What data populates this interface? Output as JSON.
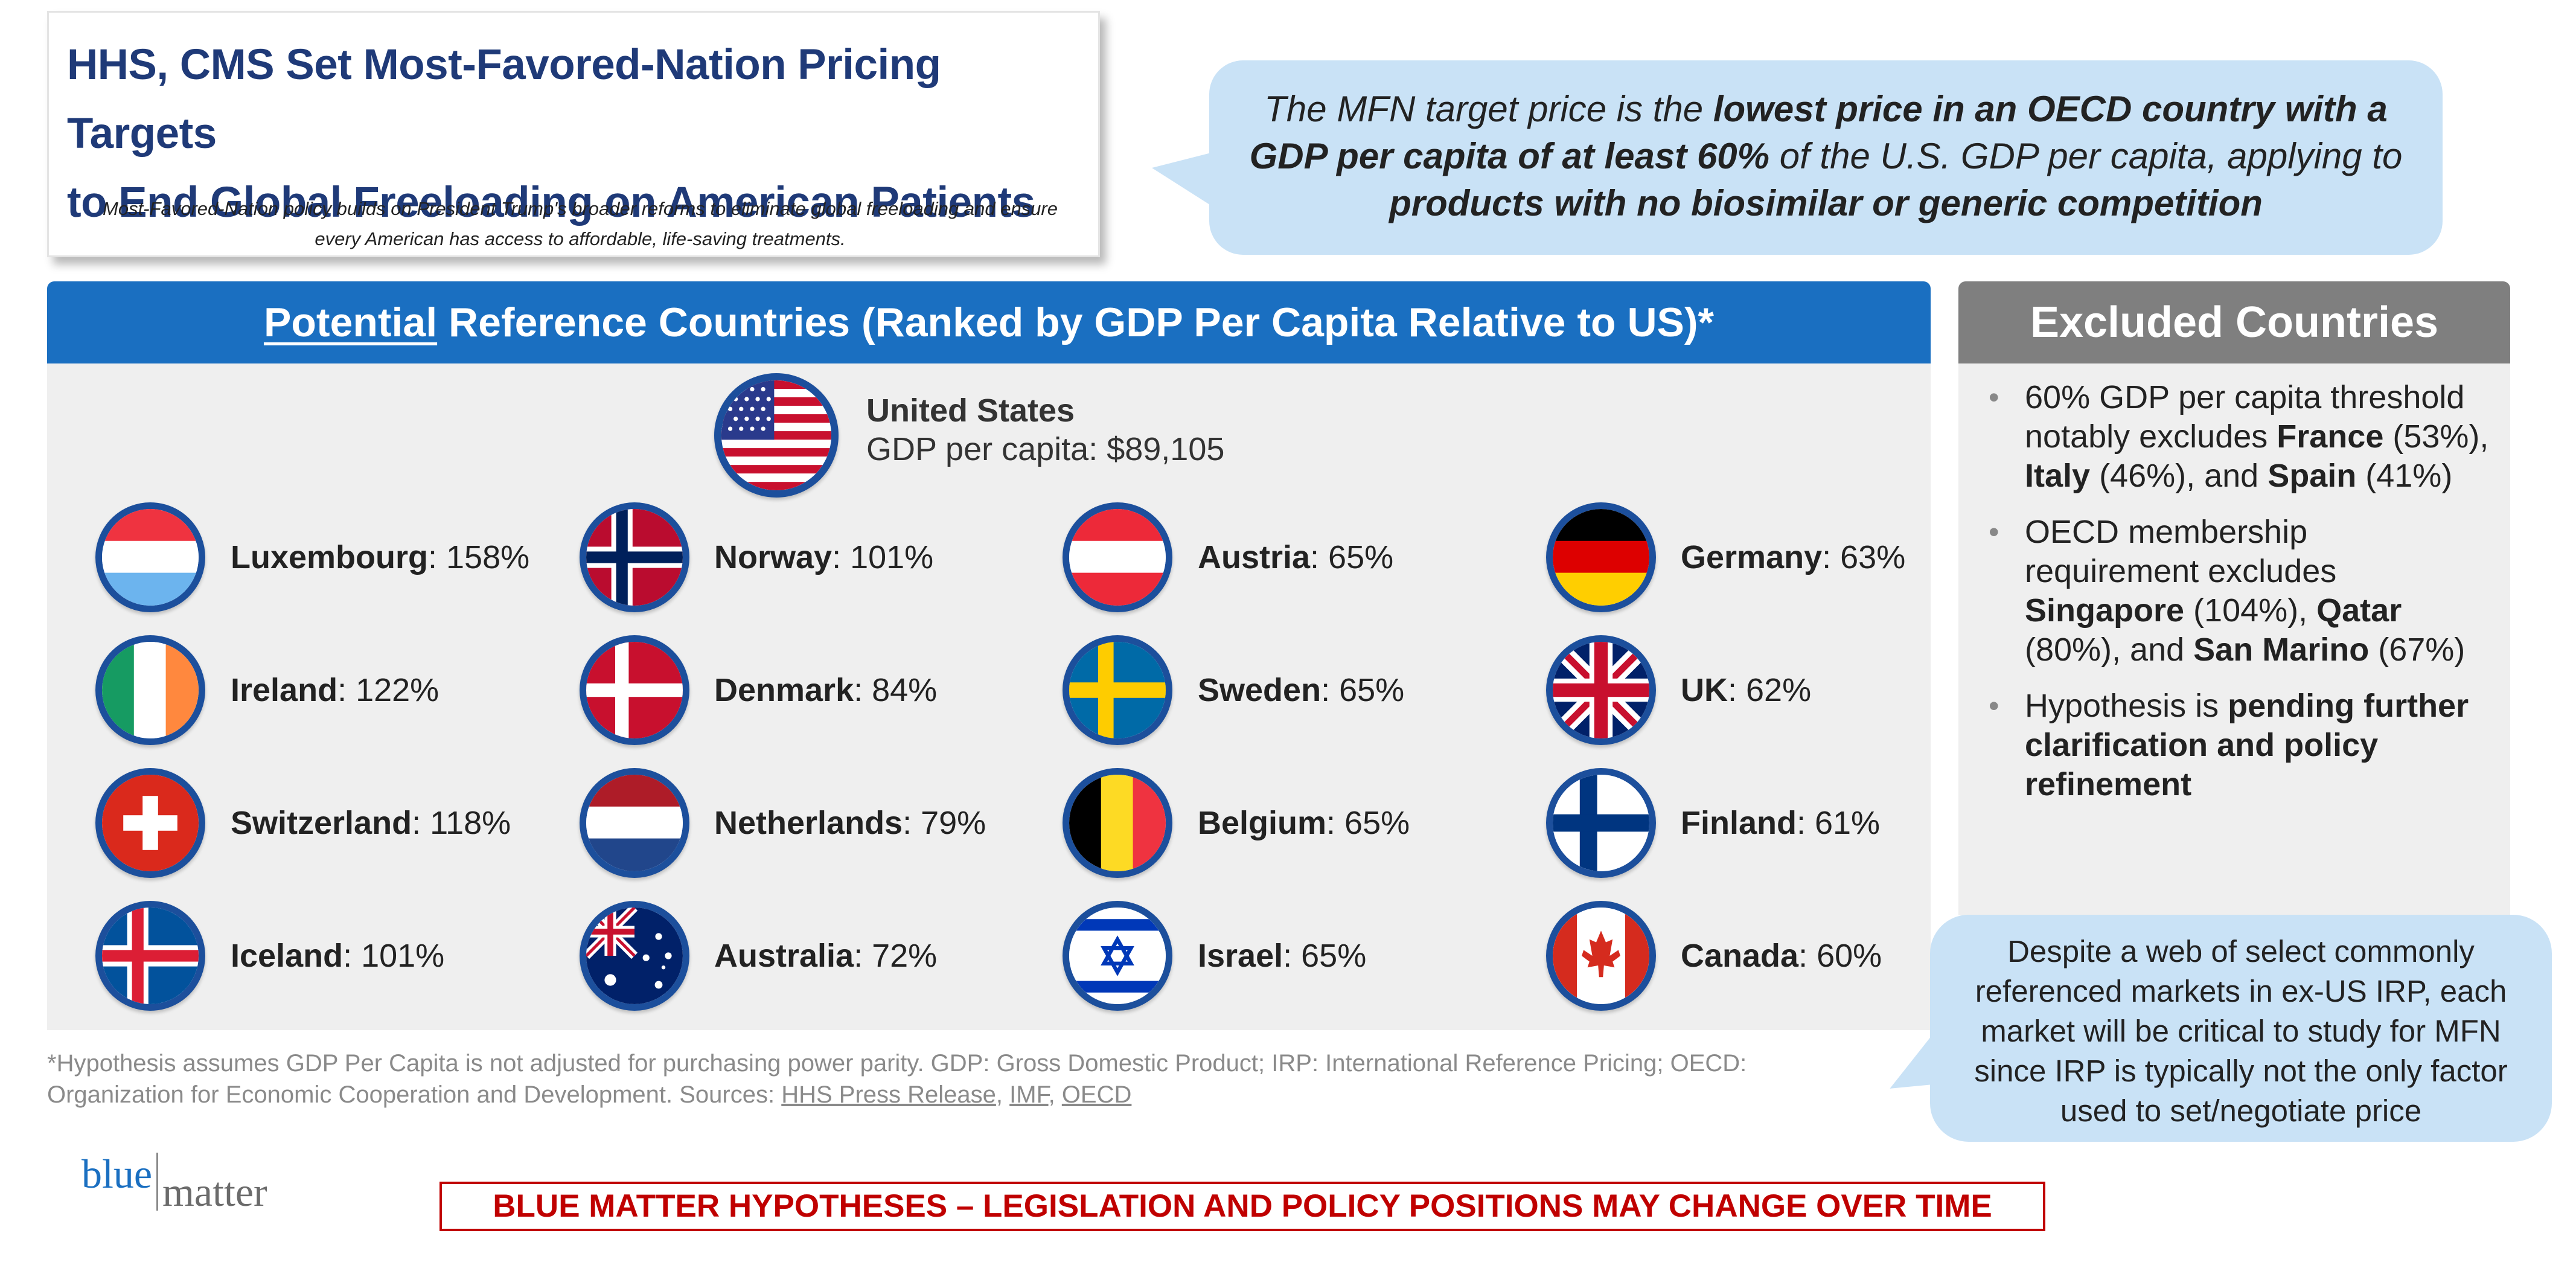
{
  "title": {
    "line1": "HHS, CMS Set Most-Favored-Nation Pricing Targets",
    "line2": "to End Global Freeloading on American Patients",
    "subtitle": "Most-Favored-Nation policy builds on President Trump's broader reforms to eliminate global freeloading and ensure every American has access to affordable, life-saving treatments."
  },
  "callout_top": {
    "t1": "The MFN target price is the ",
    "b1": "lowest price in an OECD country with a GDP per capita of at least 60%",
    "t2": " of the U.S. GDP per capita, applying to ",
    "b2": "products with no biosimilar or generic competition"
  },
  "reference": {
    "header_underlined": "Potential",
    "header_rest": " Reference Countries (Ranked by GDP Per Capita Relative to US)*",
    "us": {
      "name": "United States",
      "gdp": "GDP per capita: $89,105",
      "flag": "us-flag-icon"
    },
    "countries": [
      {
        "name": "Luxembourg",
        "pct": ": 158%",
        "flag": "luxembourg-flag-icon"
      },
      {
        "name": "Norway",
        "pct": ": 101%",
        "flag": "norway-flag-icon"
      },
      {
        "name": "Austria",
        "pct": ": 65%",
        "flag": "austria-flag-icon"
      },
      {
        "name": "Germany",
        "pct": ": 63%",
        "flag": "germany-flag-icon"
      },
      {
        "name": "Ireland",
        "pct": ": 122%",
        "flag": "ireland-flag-icon"
      },
      {
        "name": "Denmark",
        "pct": ": 84%",
        "flag": "denmark-flag-icon"
      },
      {
        "name": "Sweden",
        "pct": ": 65%",
        "flag": "sweden-flag-icon"
      },
      {
        "name": "UK",
        "pct": ": 62%",
        "flag": "uk-flag-icon"
      },
      {
        "name": "Switzerland",
        "pct": ": 118%",
        "flag": "switzerland-flag-icon"
      },
      {
        "name": "Netherlands",
        "pct": ": 79%",
        "flag": "netherlands-flag-icon"
      },
      {
        "name": "Belgium",
        "pct": ": 65%",
        "flag": "belgium-flag-icon"
      },
      {
        "name": "Finland",
        "pct": ": 61%",
        "flag": "finland-flag-icon"
      },
      {
        "name": "Iceland",
        "pct": ": 101%",
        "flag": "iceland-flag-icon"
      },
      {
        "name": "Australia",
        "pct": ": 72%",
        "flag": "australia-flag-icon"
      },
      {
        "name": "Israel",
        "pct": ": 65%",
        "flag": "israel-flag-icon"
      },
      {
        "name": "Canada",
        "pct": ": 60%",
        "flag": "canada-flag-icon"
      }
    ]
  },
  "excluded": {
    "header": "Excluded Countries",
    "b1": {
      "t1": "60% GDP per capita threshold notably excludes ",
      "france": "France",
      "t2": " (53%), ",
      "italy": "Italy",
      "t3": " (46%), and ",
      "spain": "Spain",
      "t4": " (41%)"
    },
    "b2": {
      "t1": "OECD membership requirement excludes ",
      "singapore": "Singapore",
      "t2": " (104%), ",
      "qatar": "Qatar",
      "t3": " (80%), and ",
      "sanmarino": "San Marino",
      "t4": " (67%)"
    },
    "b3": {
      "t1": "Hypothesis is ",
      "bold": "pending further clarification and policy refinement"
    }
  },
  "callout_bottom": "Despite a web of select commonly referenced markets in ex-US IRP, each market will be critical to study for MFN since IRP is typically not the only factor used to set/negotiate price",
  "footnote": {
    "text": "*Hypothesis assumes GDP Per Capita is not adjusted for purchasing power parity. GDP: Gross Domestic Product; IRP: International Reference Pricing; OECD: Organization for Economic Cooperation and Development. Sources: ",
    "link1": "HHS Press Release",
    "sep1": ", ",
    "link2": "IMF",
    "sep2": ", ",
    "link3": "OECD"
  },
  "logo": {
    "left": "blue",
    "right": "matter"
  },
  "disclaimer": "BLUE MATTER HYPOTHESES – LEGISLATION AND POLICY POSITIONS MAY CHANGE OVER TIME",
  "colors": {
    "navy_title": "#1f3a78",
    "header_blue": "#1a6fc1",
    "flag_ring": "#1c4f9c",
    "bubble": "#c9e2f6",
    "excluded_header": "#7f7f7f",
    "disclaimer_red": "#c00000"
  }
}
